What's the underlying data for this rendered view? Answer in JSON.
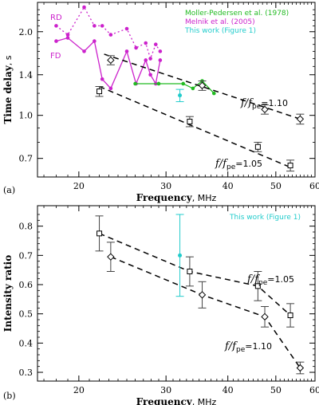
{
  "chart_data": [
    {
      "type": "line",
      "panel_label": "(a)",
      "xlabel": "Frequency",
      "xlabel_unit": ", MHz",
      "ylabel": "Time delay",
      "ylabel_unit": ", s",
      "xlim": [
        16.5,
        60
      ],
      "ylim": [
        0.6,
        2.55
      ],
      "y_scale": "log",
      "x_scale": "log",
      "xticks": [
        20,
        30,
        40,
        50,
        60
      ],
      "yticks": [
        0.7,
        1.0,
        1.4,
        2.0
      ],
      "ytick_labels": [
        "0.7",
        "1.0",
        "1.4",
        "2.0"
      ],
      "legend": [
        {
          "text": "Moller-Pedersen et al. (1978)",
          "color": "#22bb22"
        },
        {
          "text": "Melnik et al. (2005)",
          "color": "#cc22cc"
        },
        {
          "text": "This work (Figure 1)",
          "color": "#22cccc"
        }
      ],
      "colors": {
        "green": "#22bb22",
        "magenta": "#cc22cc",
        "cyan": "#22cccc"
      },
      "series": [
        {
          "name": "RD",
          "style": "magenta-dotted",
          "x": [
            18,
            19,
            20.5,
            21.5,
            22.3,
            23.2,
            25.0,
            26.1,
            27.3,
            27.9,
            28.6,
            29.2
          ],
          "y": [
            2.1,
            1.95,
            2.45,
            2.1,
            2.1,
            1.95,
            2.05,
            1.75,
            1.82,
            1.6,
            1.8,
            1.7
          ]
        },
        {
          "name": "FD",
          "style": "magenta-solid",
          "x": [
            18,
            19,
            20.5,
            21.5,
            22.3,
            23.2,
            25.0,
            26.1,
            27.3,
            27.9,
            28.6,
            29.2
          ],
          "y": [
            1.85,
            1.9,
            1.7,
            1.85,
            1.35,
            1.25,
            1.7,
            1.3,
            1.58,
            1.4,
            1.3,
            1.58
          ]
        },
        {
          "name": "",
          "style": "green-solid",
          "x": [
            26.0,
            29.0,
            32.5,
            34.0,
            35.5,
            37.5
          ],
          "y": [
            1.3,
            1.3,
            1.3,
            1.25,
            1.33,
            1.2
          ]
        },
        {
          "name": "f/f_pe=1.10",
          "style": "black-dashed-diamond",
          "fit": [
            [
              22.5,
              1.66
            ],
            [
              56.0,
              0.97
            ]
          ],
          "x": [
            23.2,
            35.5,
            47.5,
            56.0
          ],
          "y": [
            1.58,
            1.28,
            1.05,
            0.97
          ],
          "err": [
            0.06,
            0.05,
            0.04,
            0.04
          ]
        },
        {
          "name": "f/f_pe=1.05",
          "style": "black-dashed-square",
          "fit": [
            [
              22.0,
              1.27
            ],
            [
              53.5,
              0.65
            ]
          ],
          "x": [
            22.0,
            33.5,
            46.0,
            53.5
          ],
          "y": [
            1.22,
            0.95,
            0.77,
            0.66
          ],
          "err": [
            0.05,
            0.04,
            0.03,
            0.03
          ]
        },
        {
          "name": "This work (Figure 1)",
          "style": "cyan-point",
          "x": [
            32.0
          ],
          "y": [
            1.18
          ],
          "err": [
            0.06
          ]
        }
      ],
      "annotations": [
        {
          "text": "RD",
          "color": "#cc22cc"
        },
        {
          "text": "FD",
          "color": "#cc22cc"
        },
        {
          "text": "f/f",
          "sub": "pe",
          "rest": "=1.10"
        },
        {
          "text": "f/f",
          "sub": "pe",
          "rest": "=1.05"
        }
      ]
    },
    {
      "type": "line",
      "panel_label": "(b)",
      "xlabel": "Frequency",
      "xlabel_unit": ", MHz",
      "ylabel": "Intensity ratio",
      "xlim": [
        16.5,
        60
      ],
      "ylim": [
        0.27,
        0.87
      ],
      "x_scale": "log",
      "xticks": [
        20,
        30,
        40,
        50,
        60
      ],
      "yticks": [
        0.3,
        0.4,
        0.5,
        0.6,
        0.7,
        0.8
      ],
      "ytick_labels": [
        "0.3",
        "0.4",
        "0.5",
        "0.6",
        "0.7",
        "0.8"
      ],
      "legend": [
        {
          "text": "This work (Figure 1)",
          "color": "#22cccc"
        }
      ],
      "series": [
        {
          "name": "f/f_pe=1.05",
          "style": "black-dashed-square",
          "x": [
            22.0,
            33.5,
            46.0,
            53.5
          ],
          "y": [
            0.775,
            0.645,
            0.595,
            0.495
          ],
          "err": [
            0.06,
            0.05,
            0.05,
            0.04
          ]
        },
        {
          "name": "f/f_pe=1.10",
          "style": "black-dashed-diamond",
          "x": [
            23.2,
            35.5,
            47.5,
            56.0
          ],
          "y": [
            0.695,
            0.565,
            0.49,
            0.315
          ],
          "err": [
            0.05,
            0.045,
            0.035,
            0.02
          ]
        },
        {
          "name": "This work (Figure 1)",
          "style": "cyan-point",
          "x": [
            32.0
          ],
          "y": [
            0.7
          ],
          "err_low": [
            0.14
          ],
          "err_high": [
            0.14
          ]
        }
      ],
      "annotations": [
        {
          "text": "f/f",
          "sub": "pe",
          "rest": "=1.05"
        },
        {
          "text": "f/f",
          "sub": "pe",
          "rest": "=1.10"
        }
      ]
    }
  ]
}
